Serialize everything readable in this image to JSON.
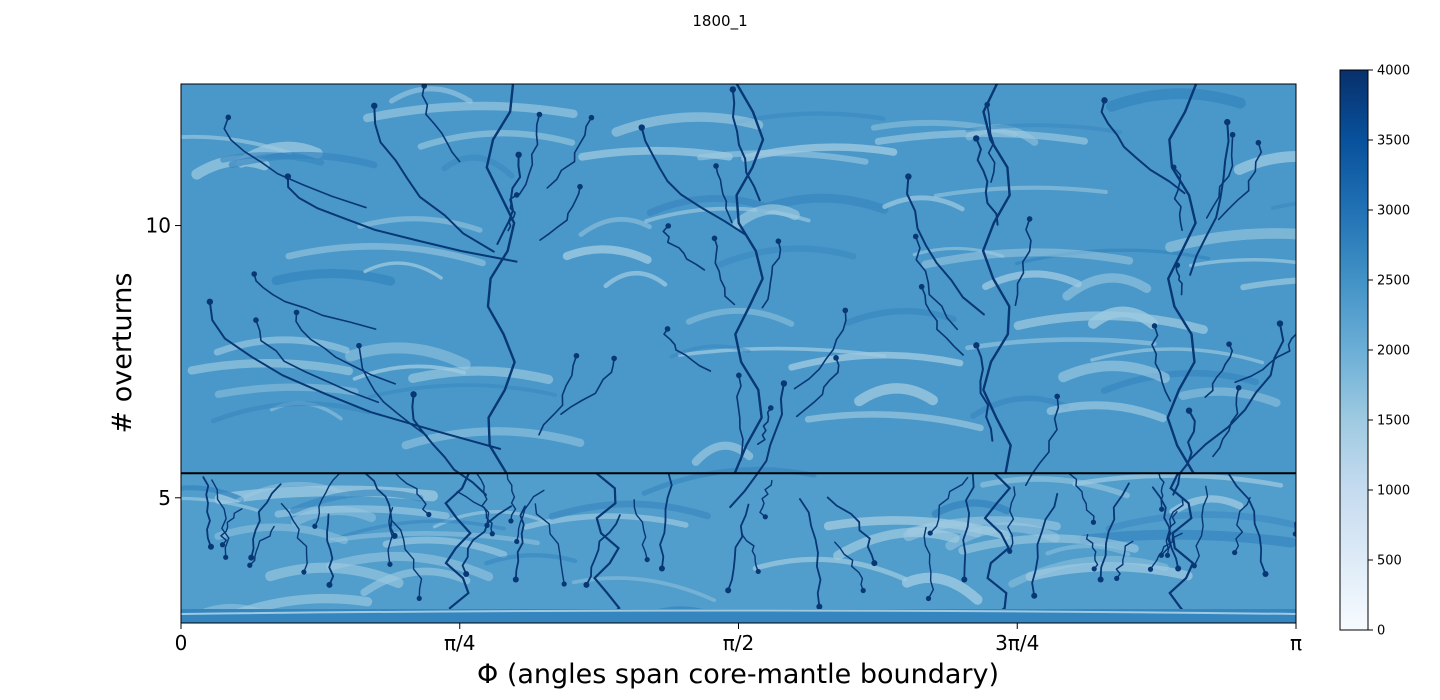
{
  "chart_data": {
    "type": "heatmap",
    "title": "1800_1",
    "xlabel": "Φ (angles span core-mantle boundary)",
    "ylabel": "# overturns",
    "x_ticks": [
      {
        "value": 0,
        "label": "0"
      },
      {
        "value": 0.7854,
        "label": "π/4"
      },
      {
        "value": 1.5708,
        "label": "π/2"
      },
      {
        "value": 2.3562,
        "label": "3π/4"
      },
      {
        "value": 3.1416,
        "label": "π"
      }
    ],
    "y_ticks": [
      {
        "value": 5,
        "label": "5"
      },
      {
        "value": 10,
        "label": "10"
      }
    ],
    "xlim": [
      0,
      3.1416
    ],
    "ylim": [
      2.7,
      12.6
    ],
    "hline_y": 5.45,
    "colormap": "Blues",
    "colorbar": {
      "min": 0,
      "max": 4000,
      "ticks": [
        0,
        500,
        1000,
        1500,
        2000,
        2500,
        3000,
        3500,
        4000
      ],
      "tick_labels": [
        "0",
        "500",
        "1000",
        "1500",
        "2000",
        "2500",
        "3000",
        "3500",
        "4000"
      ],
      "colors": [
        "#f7fbff",
        "#deebf7",
        "#c6dbef",
        "#9ecae1",
        "#6baed6",
        "#4292c6",
        "#2171b5",
        "#08519c",
        "#08306b"
      ]
    },
    "background_value": 2400,
    "dark_streak_value": 3900,
    "light_streak_value": 1500,
    "downwellings_upper": [
      [
        0.08,
        8.6
      ],
      [
        0.3,
        10.9
      ],
      [
        0.55,
        12.2
      ],
      [
        0.95,
        11.3
      ],
      [
        1.3,
        11.8
      ],
      [
        1.55,
        12.5
      ],
      [
        2.05,
        10.9
      ],
      [
        2.25,
        11.6
      ],
      [
        2.6,
        12.3
      ],
      [
        2.95,
        11.9
      ],
      [
        3.1,
        8.2
      ],
      [
        0.65,
        6.9
      ],
      [
        1.7,
        7.1
      ],
      [
        2.25,
        7.8
      ],
      [
        2.85,
        6.6
      ]
    ],
    "downwellings_lower": [
      [
        0.08,
        4.1
      ],
      [
        0.2,
        3.9
      ],
      [
        0.42,
        3.4
      ],
      [
        0.6,
        4.3
      ],
      [
        0.8,
        3.6
      ],
      [
        0.95,
        3.5
      ],
      [
        1.15,
        3.4
      ],
      [
        1.35,
        3.7
      ],
      [
        1.55,
        3.3
      ],
      [
        1.8,
        3.0
      ],
      [
        1.95,
        3.8
      ],
      [
        2.2,
        3.5
      ],
      [
        2.4,
        3.2
      ],
      [
        2.6,
        3.5
      ],
      [
        2.8,
        3.7
      ],
      [
        3.05,
        3.6
      ]
    ],
    "upwellings_upper": [
      0.9,
      1.6,
      2.3,
      2.82
    ],
    "upwellings_lower": [
      0.78,
      1.2,
      2.3,
      2.82
    ]
  }
}
